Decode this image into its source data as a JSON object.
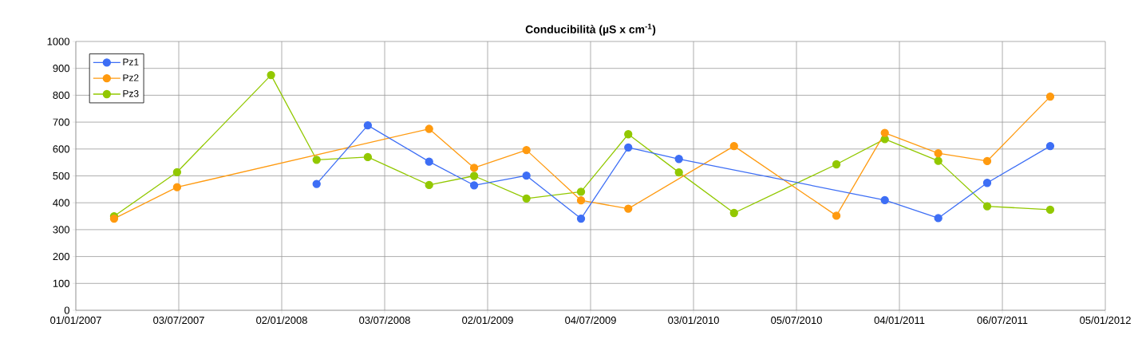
{
  "chart_data": {
    "type": "line",
    "title": "Conducibilità  (µS x cm$^{-1}$)",
    "xlim": [
      "2007-01-01",
      "2012-01-05"
    ],
    "xticks": [
      {
        "value": "2007-01-01",
        "label": "01/01/2007"
      },
      {
        "value": "2007-07-03",
        "label": "03/07/2007"
      },
      {
        "value": "2008-01-02",
        "label": "02/01/2008"
      },
      {
        "value": "2008-07-03",
        "label": "03/07/2008"
      },
      {
        "value": "2009-01-02",
        "label": "02/01/2009"
      },
      {
        "value": "2009-07-04",
        "label": "04/07/2009"
      },
      {
        "value": "2010-01-03",
        "label": "03/01/2010"
      },
      {
        "value": "2010-07-05",
        "label": "05/07/2010"
      },
      {
        "value": "2011-01-04",
        "label": "04/01/2011"
      },
      {
        "value": "2011-07-06",
        "label": "06/07/2011"
      },
      {
        "value": "2012-01-05",
        "label": "05/01/2012"
      }
    ],
    "ylim": [
      0,
      1000
    ],
    "yticks": [
      0,
      100,
      200,
      300,
      400,
      500,
      600,
      700,
      800,
      900,
      1000
    ],
    "grid": true,
    "legend": "top left",
    "marker": "circle",
    "line_style": "solid",
    "series": [
      {
        "name": "Pz1",
        "color": "#3d6ef5",
        "x": [
          "2008-03-04",
          "2008-06-03",
          "2008-09-20",
          "2008-12-09",
          "2009-03-12",
          "2009-06-17",
          "2009-09-09",
          "2009-12-08",
          "2010-12-09",
          "2011-03-14",
          "2011-06-09",
          "2011-09-29"
        ],
        "values": [
          470,
          688,
          553,
          465,
          501,
          341,
          606,
          563,
          410,
          343,
          474,
          611
        ]
      },
      {
        "name": "Pz2",
        "color": "#ff9a0f",
        "x": [
          "2007-03-10",
          "2007-06-30",
          "2008-09-20",
          "2008-12-09",
          "2009-03-12",
          "2009-06-17",
          "2009-09-09",
          "2010-03-16",
          "2010-09-14",
          "2010-12-09",
          "2011-03-14",
          "2011-06-09",
          "2011-09-29"
        ],
        "values": [
          341,
          458,
          675,
          530,
          596,
          409,
          378,
          611,
          352,
          660,
          584,
          555,
          795
        ]
      },
      {
        "name": "Pz3",
        "color": "#92c800",
        "x": [
          "2007-03-10",
          "2007-06-30",
          "2007-12-14",
          "2008-03-04",
          "2008-06-03",
          "2008-09-20",
          "2008-12-09",
          "2009-03-12",
          "2009-06-17",
          "2009-09-09",
          "2009-12-08",
          "2010-03-16",
          "2010-09-14",
          "2010-12-09",
          "2011-03-14",
          "2011-06-09",
          "2011-09-29"
        ],
        "values": [
          350,
          514,
          875,
          560,
          570,
          466,
          500,
          416,
          441,
          655,
          513,
          362,
          543,
          637,
          556,
          387,
          374
        ]
      }
    ]
  }
}
